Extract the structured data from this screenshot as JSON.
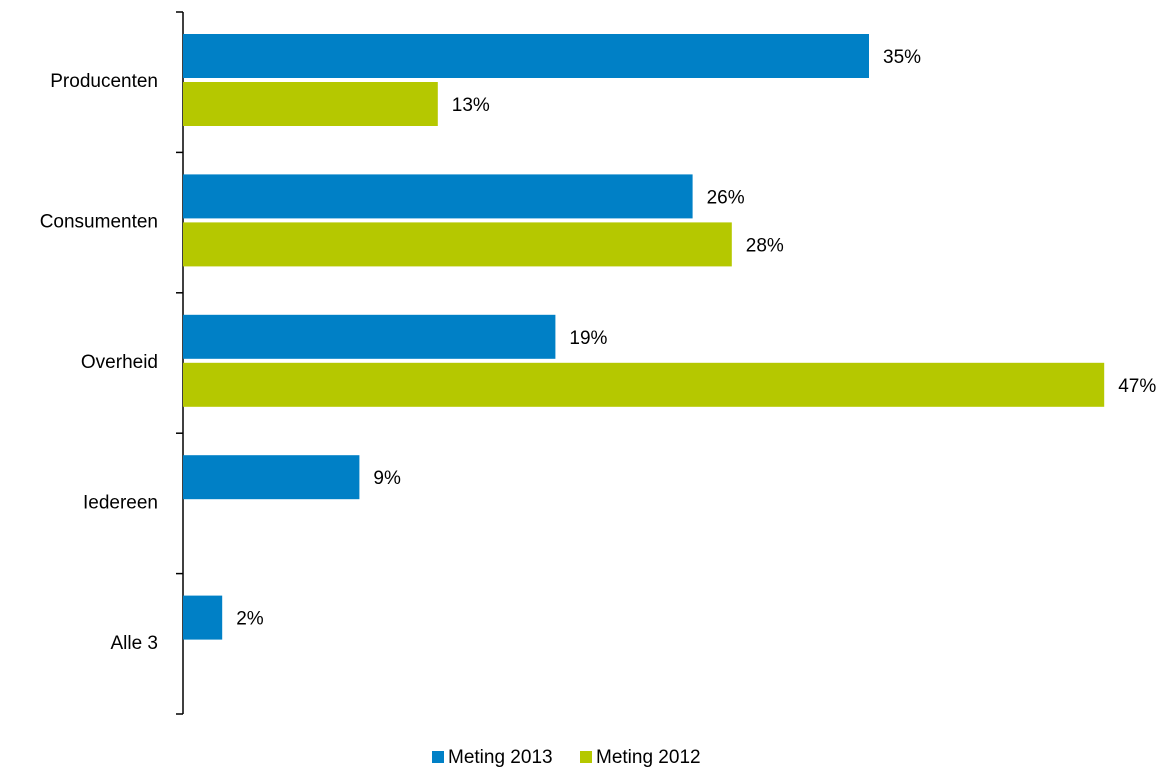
{
  "chart_data": {
    "type": "hbar",
    "categories": [
      "Producenten",
      "Consumenten",
      "Overheid",
      "Iedereen",
      "Alle 3"
    ],
    "series": [
      {
        "name": "Meting 2013",
        "color": "#0080c6",
        "values": [
          35,
          26,
          19,
          9,
          2
        ],
        "value_labels": [
          "35%",
          "26%",
          "19%",
          "9%",
          "2%"
        ]
      },
      {
        "name": "Meting 2012",
        "color": "#b5c800",
        "values": [
          13,
          28,
          47,
          null,
          null
        ],
        "value_labels": [
          "13%",
          "28%",
          "47%",
          null,
          null
        ]
      }
    ],
    "legend": "bottom"
  }
}
